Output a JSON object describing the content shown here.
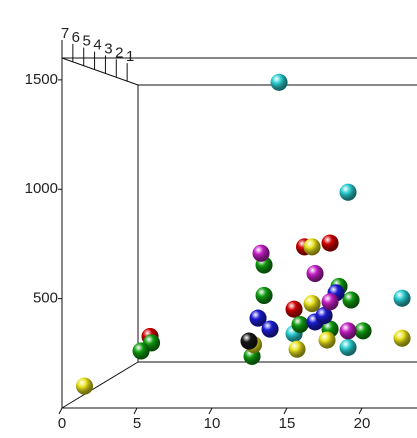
{
  "chart_data": {
    "type": "scatter3d",
    "xlim": [
      0,
      23.5
    ],
    "ylim": [
      0,
      1600
    ],
    "zlim": [
      0,
      7
    ],
    "xticks": [
      0,
      5,
      10,
      15,
      20
    ],
    "yticks": [
      500,
      1000,
      1500
    ],
    "zticks": [
      7,
      6,
      5,
      4,
      3,
      2,
      1
    ],
    "series": [
      {
        "color": "#2ccfd2",
        "x": [
          12.3,
          16.9,
          20.5,
          13.3,
          16.9
        ],
        "y": [
          1536,
          984,
          452,
          274,
          205
        ],
        "z": [
          4,
          4,
          4,
          4,
          4
        ]
      },
      {
        "color": "#d00000",
        "x": [
          14.0,
          15.7,
          13.3,
          3.7
        ],
        "y": [
          710,
          729,
          397,
          260
        ],
        "z": [
          4,
          4,
          4,
          4
        ]
      },
      {
        "color": "#119d11",
        "x": [
          11.3,
          11.3,
          16.3,
          17.1,
          10.5,
          13.7,
          15.7,
          17.9,
          3.8,
          3.1
        ],
        "y": [
          619,
          466,
          511,
          443,
          160,
          320,
          297,
          288,
          228,
          187
        ],
        "z": [
          4,
          4,
          4,
          4,
          4,
          4,
          4,
          4,
          4,
          4
        ]
      },
      {
        "color": "#e8e21e",
        "x": [
          14.5,
          14.5,
          10.6,
          15.5,
          13.5,
          20.5,
          1.5
        ],
        "y": [
          710,
          425,
          219,
          242,
          196,
          251,
          100
        ],
        "z": [
          4,
          4,
          4,
          4,
          4,
          4,
          7
        ]
      },
      {
        "color": "#1c1cd6",
        "x": [
          10.9,
          11.7,
          14.7,
          16.1,
          15.3
        ],
        "y": [
          352,
          297,
          333,
          479,
          365
        ],
        "z": [
          4,
          4,
          4,
          4,
          4
        ]
      },
      {
        "color": "#c41fc4",
        "x": [
          11.1,
          14.7,
          15.7,
          16.9
        ],
        "y": [
          678,
          576,
          434,
          288
        ],
        "z": [
          4,
          4,
          4,
          4
        ]
      },
      {
        "color": "#151515",
        "x": [
          10.3
        ],
        "y": [
          237
        ],
        "z": [
          4
        ]
      }
    ]
  }
}
